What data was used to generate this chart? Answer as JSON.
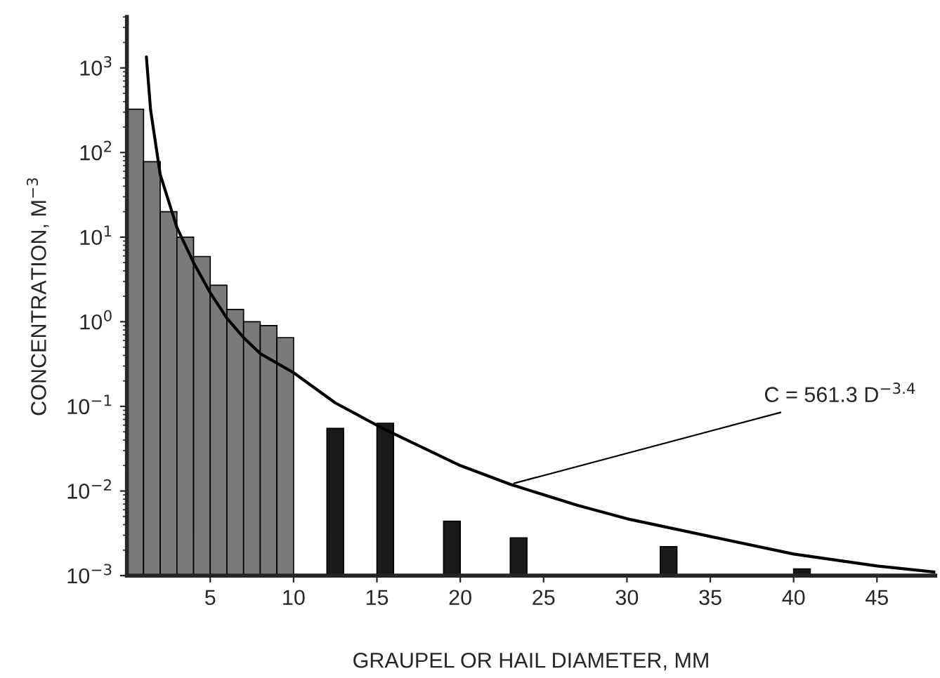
{
  "chart_data": {
    "type": "bar",
    "xlabel": "GRAUPEL OR HAIL DIAMETER, MM",
    "ylabel": "CONCENTRATION, M$^{−3}$",
    "log": "y",
    "xlim": [
      0,
      48.5
    ],
    "xticks": [
      5,
      10,
      15,
      20,
      25,
      30,
      35,
      40,
      45
    ],
    "ylim": [
      0.001,
      4000
    ],
    "yticks": [
      {
        "value": 0.001,
        "label": "10$^{−3}$"
      },
      {
        "value": 0.01,
        "label": "10$^{−2}$"
      },
      {
        "value": 0.1,
        "label": "10$^{−1}$"
      },
      {
        "value": 1,
        "label": "10$^{0}$"
      },
      {
        "value": 10,
        "label": "10$^{1}$"
      },
      {
        "value": 100,
        "label": "10$^{2}$"
      },
      {
        "value": 1000,
        "label": "10$^{3}$"
      }
    ],
    "grid": false,
    "legend": false,
    "series": [
      {
        "x": [
          0.5,
          1.5,
          2.5,
          3.5,
          4.5,
          5.5,
          6.5,
          7.5,
          8.5,
          9.5,
          12.5,
          15.5,
          19.5,
          23.5,
          32.5,
          40.5
        ],
        "values": [
          325,
          78,
          20,
          10,
          5.9,
          2.7,
          1.4,
          1.0,
          0.9,
          0.65,
          0.055,
          0.063,
          0.0044,
          0.0028,
          0.0022,
          0.0012
        ],
        "colors": [
          "#7a7a7a",
          "#7a7a7a",
          "#7a7a7a",
          "#7a7a7a",
          "#7a7a7a",
          "#7a7a7a",
          "#7a7a7a",
          "#7a7a7a",
          "#7a7a7a",
          "#7a7a7a",
          "#1a1a1a",
          "#1a1a1a",
          "#1a1a1a",
          "#1a1a1a",
          "#1a1a1a",
          "#1a1a1a"
        ]
      },
      {
        "type": "line",
        "color": "#000000",
        "x": [
          1.17,
          1.42,
          2,
          3,
          4,
          5,
          6,
          7,
          8,
          10,
          12.5,
          15.5,
          20,
          23,
          27,
          30,
          35,
          40,
          45,
          48.5
        ],
        "values": [
          1350,
          320,
          55,
          13,
          5,
          2.2,
          1.1,
          0.65,
          0.42,
          0.25,
          0.11,
          0.053,
          0.02,
          0.012,
          0.0068,
          0.0047,
          0.0029,
          0.0018,
          0.0013,
          0.0011
        ]
      }
    ],
    "annotations": [
      {
        "text": "C = 561.3 D$^{−3.4}$",
        "x": 23,
        "y": 0.012
      }
    ]
  }
}
